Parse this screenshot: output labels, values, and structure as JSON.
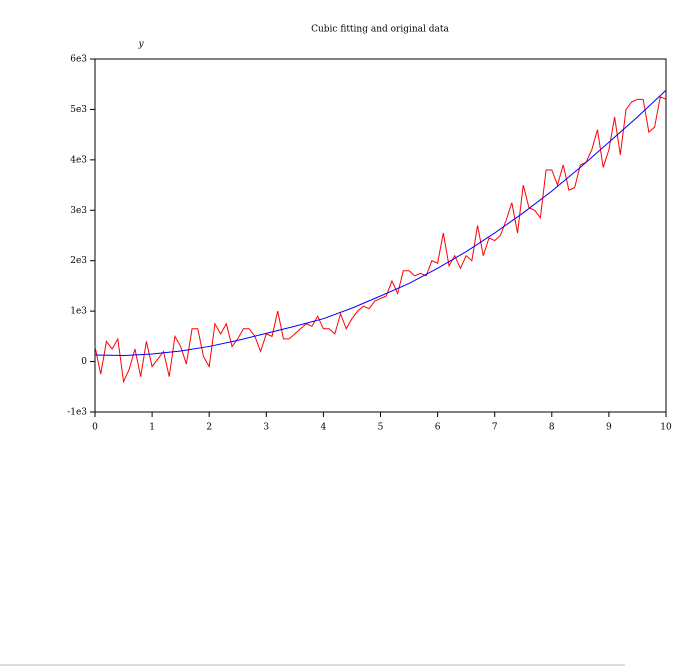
{
  "chart_data": {
    "type": "line",
    "title": "Cubic fitting and original data",
    "ylabel": "y",
    "xlim": [
      0,
      10
    ],
    "ylim": [
      -1000,
      6000
    ],
    "xticks": [
      0,
      1,
      2,
      3,
      4,
      5,
      6,
      7,
      8,
      9,
      10
    ],
    "yticks": [
      {
        "value": -1000,
        "label": "-1e3"
      },
      0,
      {
        "value": 1000,
        "label": "1e3"
      },
      {
        "value": 2000,
        "label": "2e3"
      },
      {
        "value": 3000,
        "label": "3e3"
      },
      {
        "value": 4000,
        "label": "4e3"
      },
      {
        "value": 5000,
        "label": "5e3"
      },
      {
        "value": 6000,
        "label": "6e3"
      }
    ],
    "series": [
      {
        "color": "#ff0000",
        "x": [
          0,
          0.1,
          0.2,
          0.3,
          0.4,
          0.5,
          0.6,
          0.7,
          0.8,
          0.9,
          1,
          1.1,
          1.2,
          1.3,
          1.4,
          1.5,
          1.6,
          1.7,
          1.8,
          1.9,
          2,
          2.1,
          2.2,
          2.3,
          2.4,
          2.5,
          2.6,
          2.7,
          2.8,
          2.9,
          3,
          3.1,
          3.2,
          3.3,
          3.4,
          3.5,
          3.6,
          3.7,
          3.8,
          3.9,
          4,
          4.1,
          4.2,
          4.3,
          4.4,
          4.5,
          4.6,
          4.7,
          4.8,
          4.9,
          5,
          5.1,
          5.2,
          5.3,
          5.4,
          5.5,
          5.6,
          5.7,
          5.8,
          5.9,
          6,
          6.1,
          6.2,
          6.3,
          6.4,
          6.5,
          6.6,
          6.7,
          6.8,
          6.9,
          7,
          7.1,
          7.2,
          7.3,
          7.4,
          7.5,
          7.6,
          7.7,
          7.8,
          7.9,
          8,
          8.1,
          8.2,
          8.3,
          8.4,
          8.5,
          8.6,
          8.7,
          8.8,
          8.9,
          9,
          9.1,
          9.2,
          9.3,
          9.4,
          9.5,
          9.6,
          9.7,
          9.8,
          9.9,
          10
        ],
        "values": [
          300,
          -250,
          400,
          250,
          450,
          -400,
          -150,
          250,
          -300,
          400,
          -100,
          50,
          200,
          -300,
          500,
          300,
          -50,
          650,
          650,
          100,
          -100,
          750,
          550,
          750,
          300,
          450,
          650,
          650,
          500,
          200,
          550,
          500,
          1000,
          450,
          450,
          550,
          650,
          750,
          700,
          900,
          650,
          650,
          550,
          950,
          650,
          850,
          1000,
          1100,
          1050,
          1200,
          1250,
          1300,
          1600,
          1350,
          1800,
          1800,
          1700,
          1750,
          1700,
          2000,
          1950,
          2550,
          1900,
          2100,
          1850,
          2100,
          2000,
          2700,
          2100,
          2450,
          2400,
          2500,
          2800,
          3150,
          2550,
          3500,
          3050,
          3000,
          2850,
          3800,
          3800,
          3500,
          3900,
          3400,
          3450,
          3900,
          3950,
          4200,
          4600,
          3850,
          4200,
          4850,
          4100,
          5000,
          5150,
          5200,
          5200,
          4550,
          4650,
          5250,
          5200
        ]
      },
      {
        "color": "#0000ff",
        "x": [
          0,
          0.5,
          1,
          1.5,
          2,
          2.5,
          3,
          3.5,
          4,
          4.5,
          5,
          5.5,
          6,
          6.5,
          7,
          7.5,
          8,
          8.5,
          9,
          9.5,
          10
        ],
        "values": [
          130,
          120,
          150,
          210,
          300,
          420,
          560,
          700,
          850,
          1060,
          1300,
          1550,
          1850,
          2180,
          2550,
          2950,
          3380,
          3850,
          4350,
          4850,
          5380
        ]
      }
    ]
  }
}
